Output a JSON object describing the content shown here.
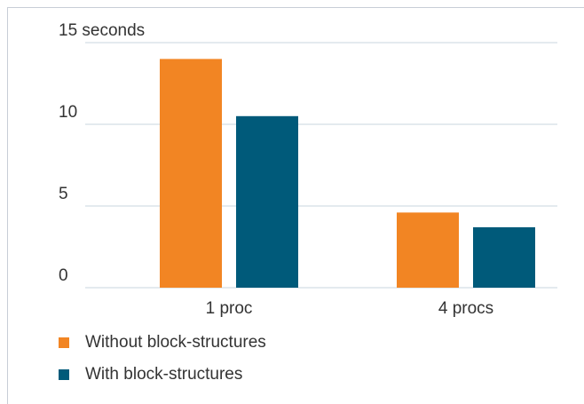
{
  "chart_data": {
    "type": "bar",
    "categories": [
      "1 proc",
      "4 procs"
    ],
    "series": [
      {
        "name": "Without block-structures",
        "color": "#F28523",
        "values": [
          14.0,
          4.6
        ]
      },
      {
        "name": "With block-structures",
        "color": "#005A7A",
        "values": [
          10.5,
          3.7
        ]
      }
    ],
    "y_ticks": [
      {
        "value": 0,
        "label": "0"
      },
      {
        "value": 5,
        "label": "5"
      },
      {
        "value": 10,
        "label": "10"
      },
      {
        "value": 15,
        "label": "15 seconds"
      }
    ],
    "ylim": [
      0,
      15
    ],
    "grid": true,
    "legend_position": "bottom-left",
    "colors": {
      "gridline": "#c8d4df",
      "text": "#333333"
    }
  }
}
